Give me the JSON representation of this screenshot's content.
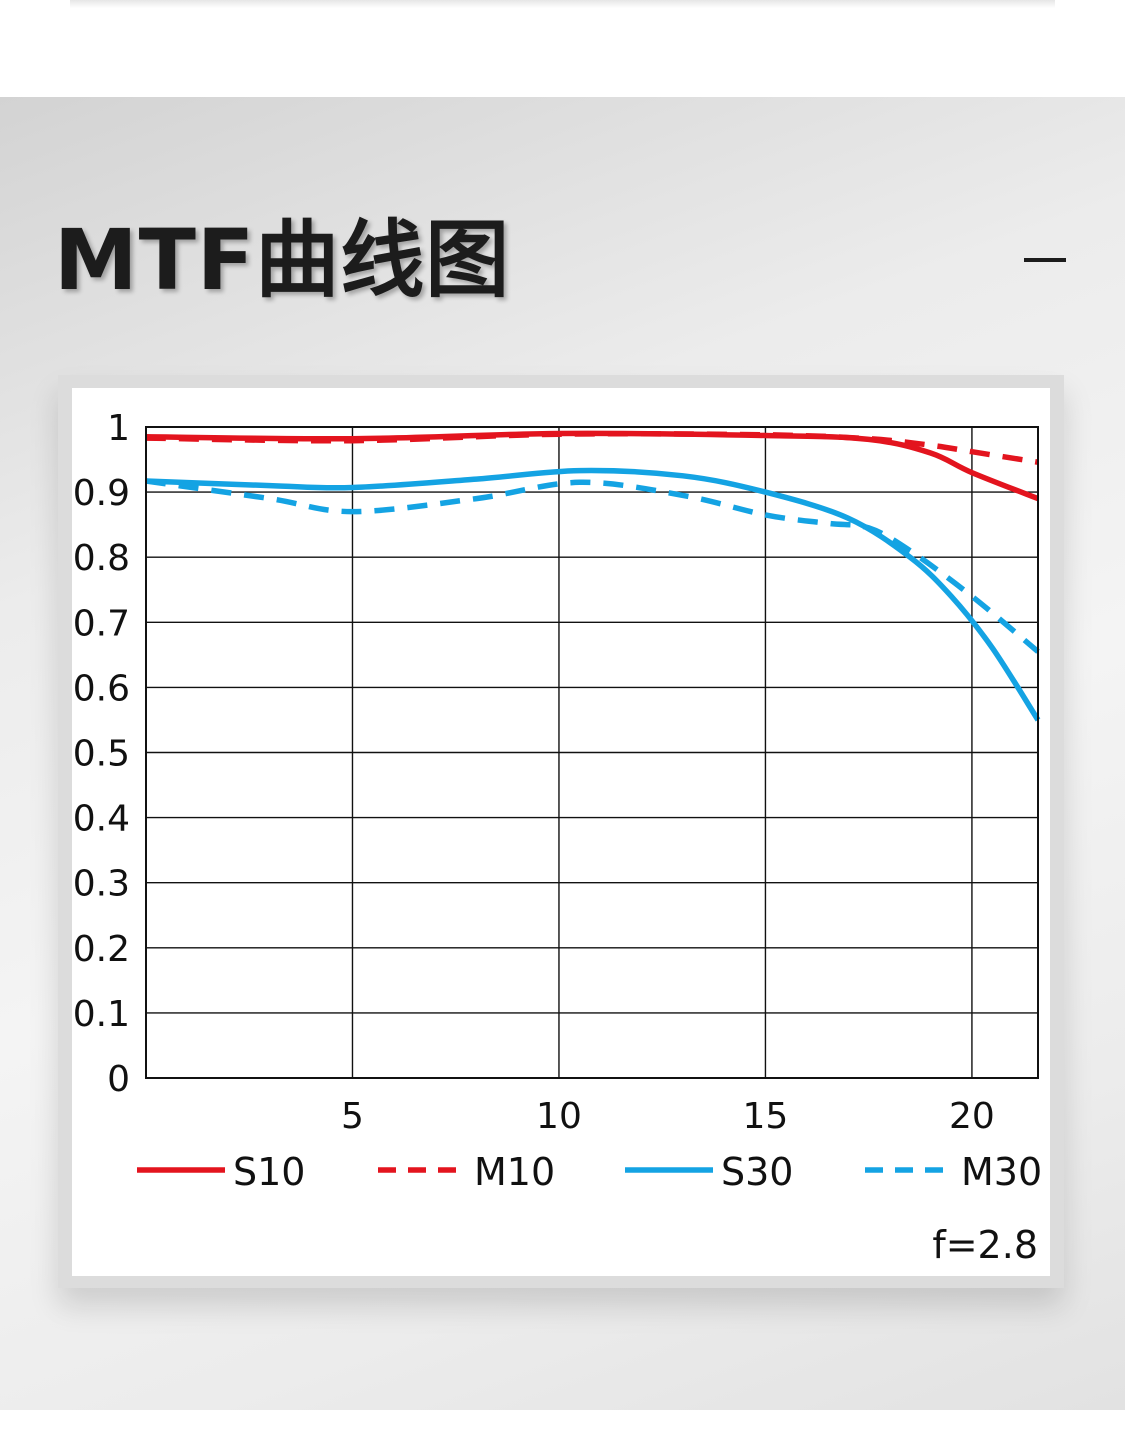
{
  "title": "MTF曲线图",
  "colors": {
    "red": "#e3141e",
    "blue": "#14a3e3",
    "grid": "#111111"
  },
  "chart_data": {
    "type": "line",
    "title": "",
    "xlabel": "",
    "ylabel": "",
    "xlim": [
      0,
      21.6
    ],
    "ylim": [
      0,
      1
    ],
    "xticks": [
      5,
      10,
      15,
      20
    ],
    "yticks": [
      0,
      0.1,
      0.2,
      0.3,
      0.4,
      0.5,
      0.6,
      0.7,
      0.8,
      0.9,
      1
    ],
    "ytick_labels": [
      "0",
      "0.1",
      "0.2",
      "0.3",
      "0.4",
      "0.5",
      "0.6",
      "0.7",
      "0.8",
      "0.9",
      "1"
    ],
    "xtick_labels": [
      "5",
      "10",
      "15",
      "20"
    ],
    "grid": true,
    "legend_position": "bottom",
    "series": [
      {
        "name": "S10",
        "color": "#e3141e",
        "style": "solid",
        "x": [
          0,
          5,
          10,
          15,
          17.5,
          19,
          20,
          21.6
        ],
        "y": [
          0.985,
          0.982,
          0.99,
          0.987,
          0.981,
          0.96,
          0.93,
          0.89
        ]
      },
      {
        "name": "M10",
        "color": "#e3141e",
        "style": "dashed",
        "x": [
          0,
          5,
          10,
          15,
          17.5,
          19,
          20,
          21.6
        ],
        "y": [
          0.983,
          0.979,
          0.989,
          0.988,
          0.982,
          0.972,
          0.962,
          0.946
        ]
      },
      {
        "name": "S30",
        "color": "#14a3e3",
        "style": "solid",
        "x": [
          0,
          3,
          5,
          8,
          10.5,
          13,
          15,
          17,
          18.5,
          19.5,
          20.5,
          21.6
        ],
        "y": [
          0.917,
          0.91,
          0.907,
          0.92,
          0.933,
          0.925,
          0.9,
          0.86,
          0.8,
          0.74,
          0.66,
          0.55
        ]
      },
      {
        "name": "M30",
        "color": "#14a3e3",
        "style": "dashed",
        "x": [
          0,
          3,
          5,
          8,
          10.5,
          13,
          15,
          16.5,
          17.5,
          18.5,
          20,
          21.6
        ],
        "y": [
          0.917,
          0.89,
          0.87,
          0.89,
          0.915,
          0.895,
          0.865,
          0.852,
          0.845,
          0.81,
          0.74,
          0.655
        ]
      }
    ],
    "annotation": "f=2.8"
  }
}
